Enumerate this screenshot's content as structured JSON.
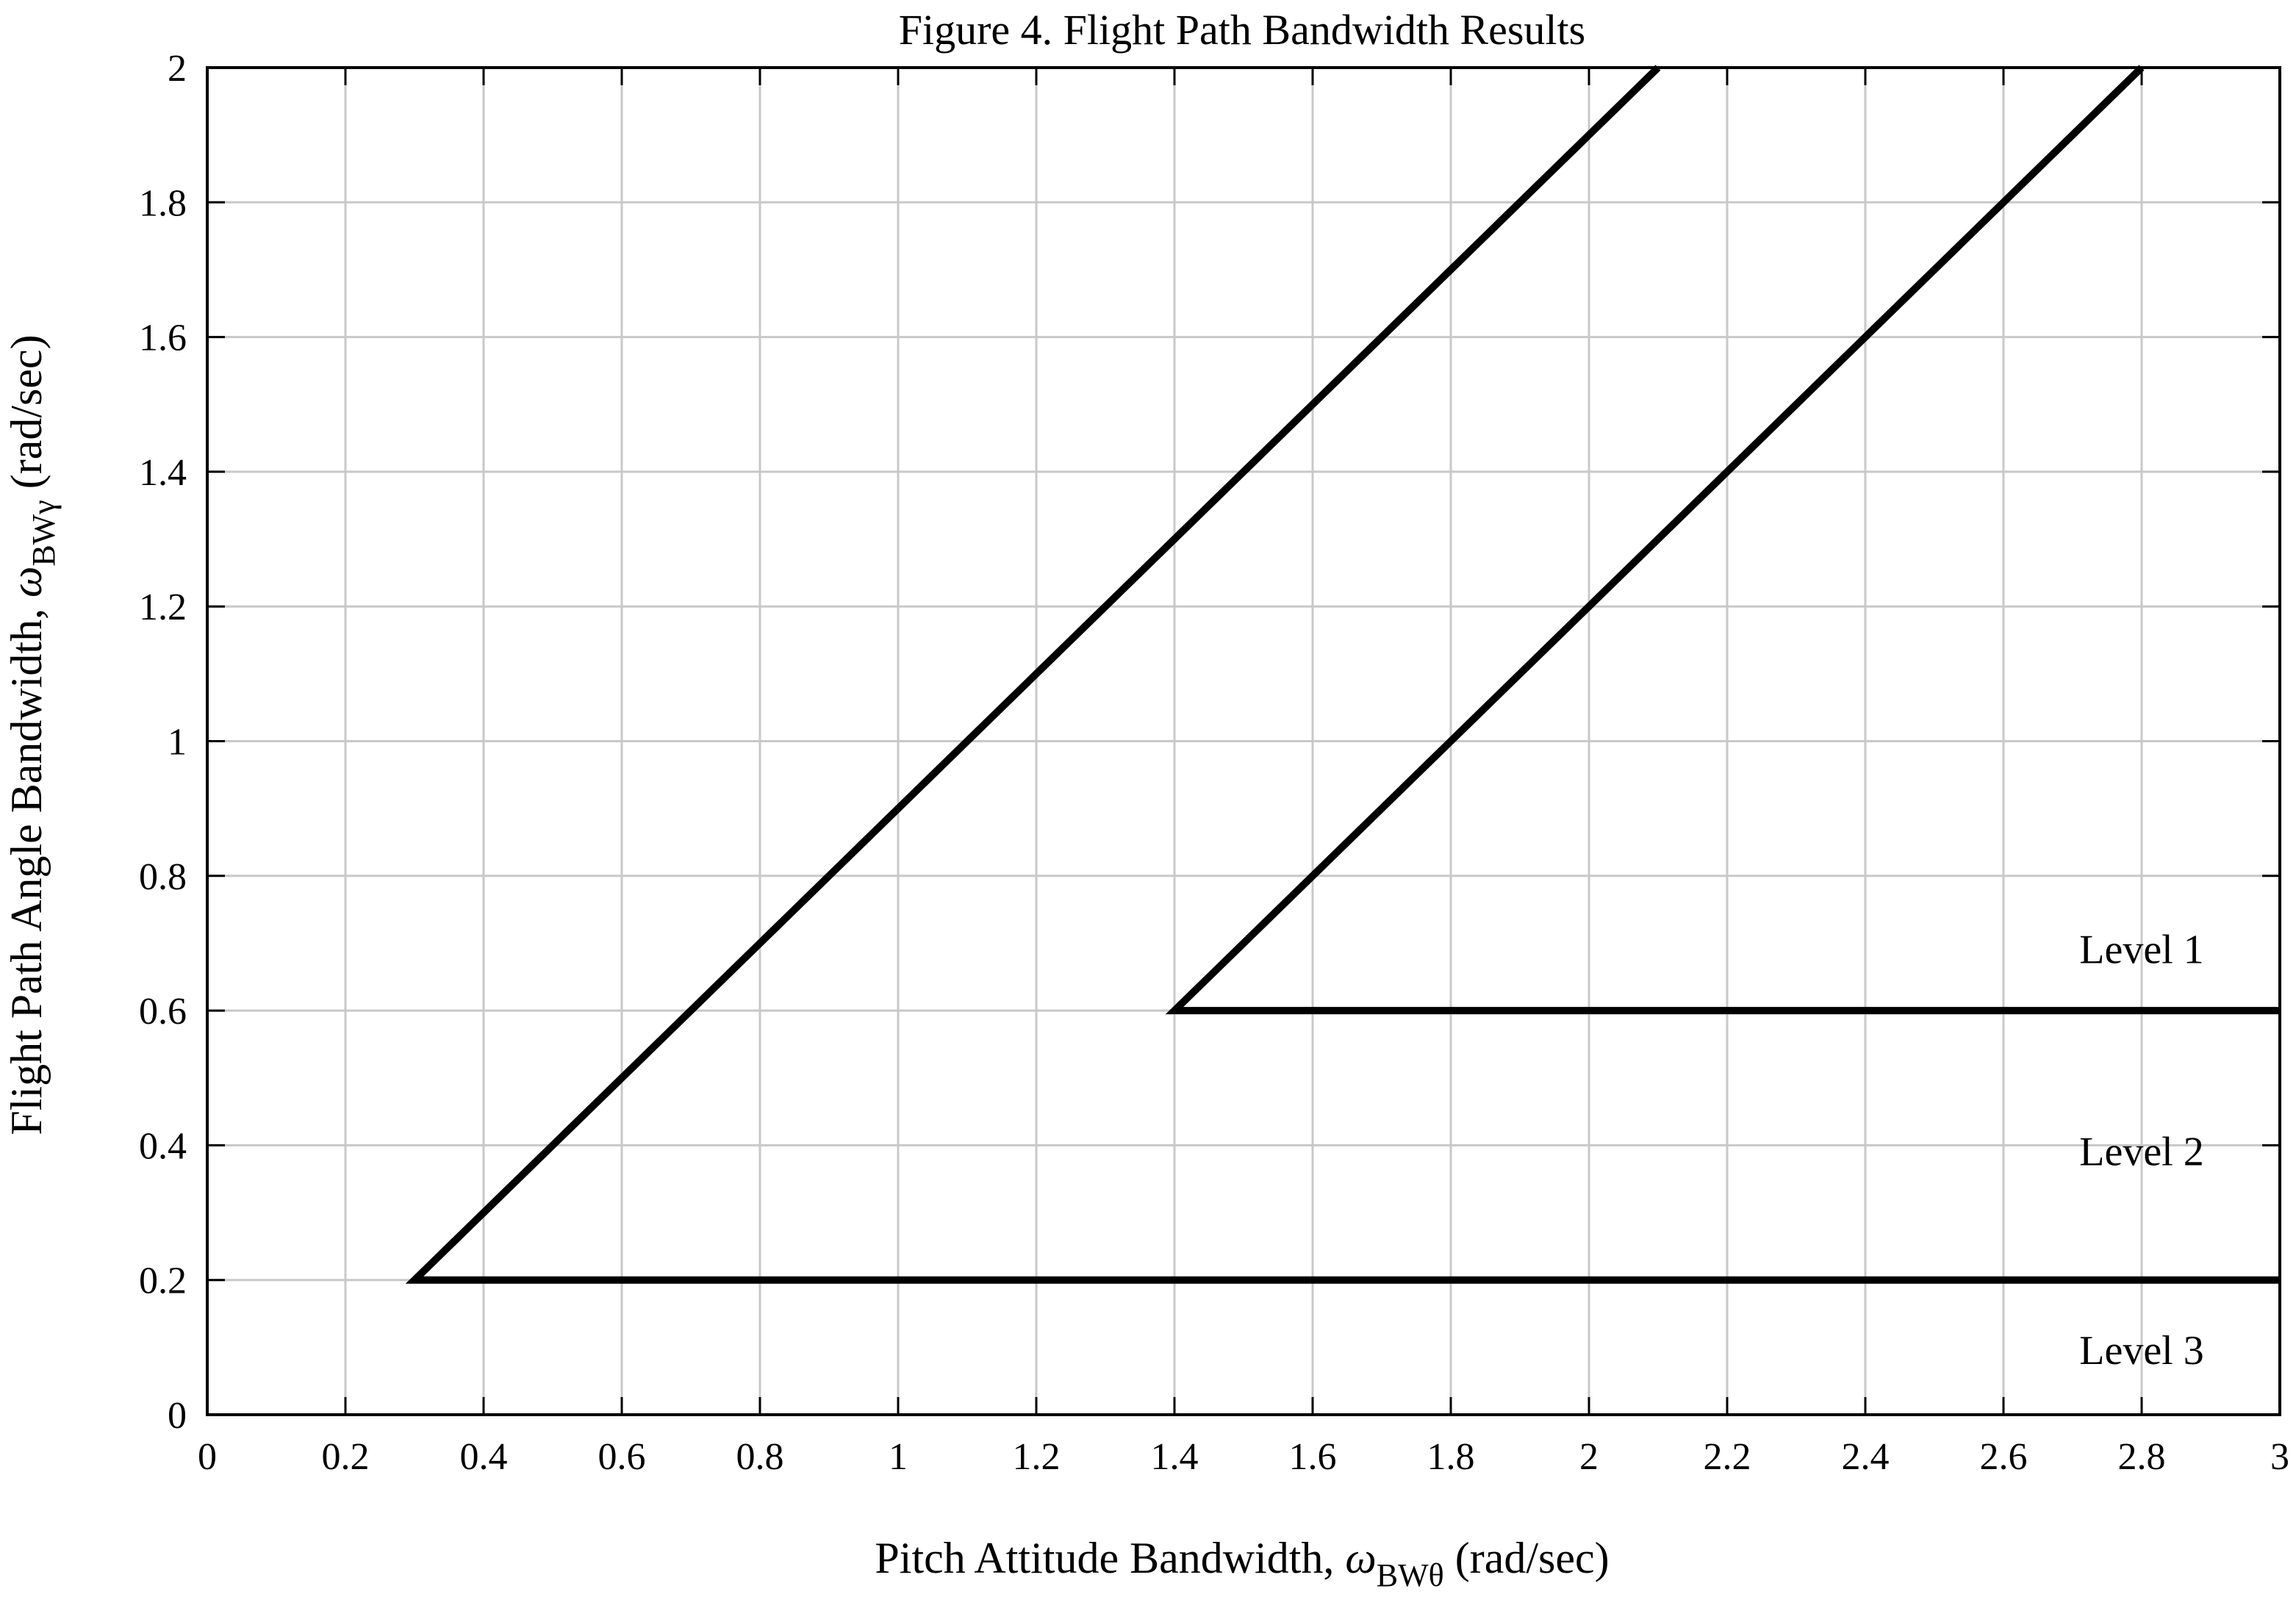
{
  "chart_data": {
    "type": "line",
    "title": "Figure 4.  Flight Path Bandwidth Results",
    "xlabel": {
      "prefix": "Pitch Attitude Bandwidth, ",
      "symbol": "ω",
      "subscript": "BWθ",
      "suffix": " (rad/sec)"
    },
    "ylabel": {
      "prefix": "Flight Path Angle Bandwidth, ",
      "symbol": "ω",
      "subscript": "BWγ",
      "suffix": " (rad/sec)"
    },
    "xlim": [
      0,
      3
    ],
    "ylim": [
      0,
      2
    ],
    "xticks": [
      0,
      0.2,
      0.4,
      0.6,
      0.8,
      1,
      1.2,
      1.4,
      1.6,
      1.8,
      2,
      2.2,
      2.4,
      2.6,
      2.8,
      3
    ],
    "yticks": [
      0,
      0.2,
      0.4,
      0.6,
      0.8,
      1,
      1.2,
      1.4,
      1.6,
      1.8,
      2
    ],
    "xtick_labels": [
      "0",
      "0.2",
      "0.4",
      "0.6",
      "0.8",
      "1",
      "1.2",
      "1.4",
      "1.6",
      "1.8",
      "2",
      "2.2",
      "2.4",
      "2.6",
      "2.8",
      "3"
    ],
    "ytick_labels": [
      "0",
      "0.2",
      "0.4",
      "0.6",
      "0.8",
      "1",
      "1.2",
      "1.4",
      "1.6",
      "1.8",
      "2"
    ],
    "grid": true,
    "line_color": "#000000",
    "grid_color": "#c8c8c8",
    "series": [
      {
        "x": [
          2.1,
          0.3,
          3.0
        ],
        "y": [
          2.0,
          0.2,
          0.2
        ]
      },
      {
        "x": [
          2.8,
          1.4,
          3.0
        ],
        "y": [
          2.0,
          0.6,
          0.6
        ]
      }
    ],
    "annotations": [
      {
        "text": "Level 1",
        "x": 2.8,
        "y": 0.69
      },
      {
        "text": "Level 2",
        "x": 2.8,
        "y": 0.39
      },
      {
        "text": "Level 3",
        "x": 2.8,
        "y": 0.095
      }
    ]
  }
}
